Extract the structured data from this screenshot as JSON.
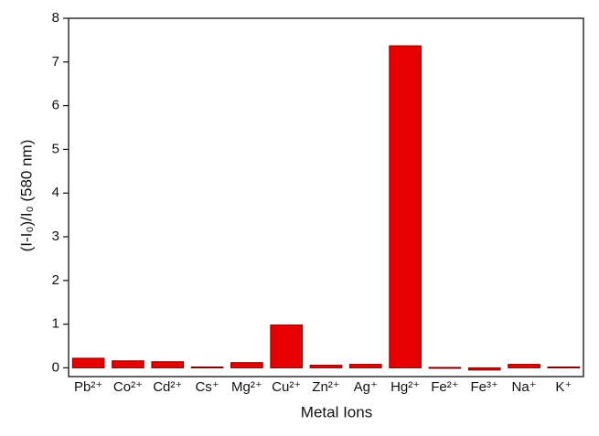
{
  "chart_data": {
    "type": "bar",
    "categories": [
      "Pb²⁺",
      "Co²⁺",
      "Cd²⁺",
      "Cs⁺",
      "Mg²⁺",
      "Cu²⁺",
      "Zn²⁺",
      "Ag⁺",
      "Hg²⁺",
      "Fe²⁺",
      "Fe³⁺",
      "Na⁺",
      "K⁺"
    ],
    "values": [
      0.22,
      0.16,
      0.14,
      0.02,
      0.12,
      0.98,
      0.06,
      0.08,
      7.37,
      0.01,
      -0.05,
      0.08,
      0.02
    ],
    "color": "#e60000",
    "ylim": [
      -0.2,
      8
    ],
    "yticks": [
      0,
      1,
      2,
      3,
      4,
      5,
      6,
      7,
      8
    ],
    "xlabel": "Metal Ions",
    "ylabel": "(I-I₀)/I₀   (580 nm)"
  }
}
